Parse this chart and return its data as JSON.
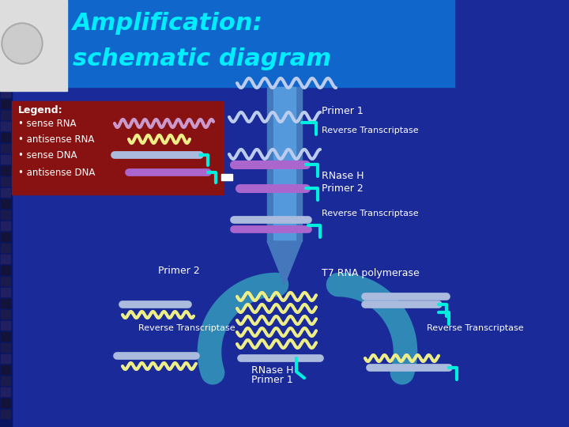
{
  "title_line1": "Amplification:",
  "title_line2": "schematic diagram",
  "title_color": "#00EEFF",
  "title_bg_color": "#1166CC",
  "bg_color": "#1A2A99",
  "legend_bg": "#881111",
  "legend_title": "Legend:",
  "sense_rna_color": "#CC99CC",
  "antisense_rna_color": "#EEEE88",
  "sense_dna_color": "#BB88BB",
  "antisense_dna_color": "#EE88CC",
  "white_dna_color": "#AABBDD",
  "purple_dna_color": "#AA66CC",
  "col_color": "#4477BB",
  "col_color2": "#5599DD",
  "cyan_color": "#00EEDD",
  "arrow_color": "#3399BB",
  "label_color": "#FFFFFF",
  "font_size": 9,
  "wavy_white": "#BBCCEE"
}
